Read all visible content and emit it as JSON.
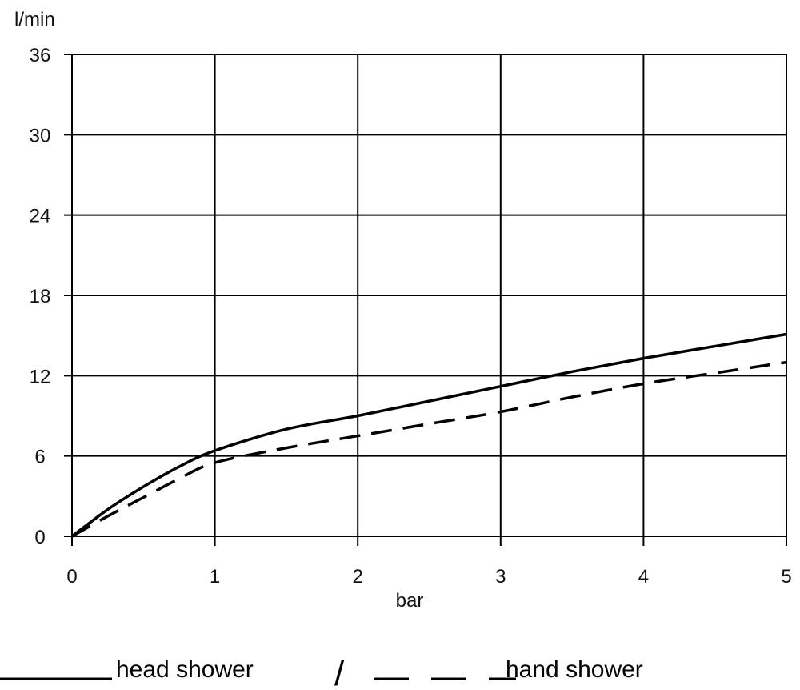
{
  "chart_data": {
    "type": "line",
    "title": "",
    "xlabel": "bar",
    "ylabel": "l/min",
    "xlim": [
      0,
      5
    ],
    "ylim": [
      0,
      36
    ],
    "xticks": [
      0,
      1,
      2,
      3,
      4,
      5
    ],
    "yticks": [
      0,
      6,
      12,
      18,
      24,
      30,
      36
    ],
    "grid": true,
    "legend_placement": "bottom",
    "legend_separator": "/",
    "series": [
      {
        "name": "head shower",
        "style": "solid",
        "color": "#000000",
        "x": [
          0,
          0.25,
          0.5,
          0.75,
          1,
          1.5,
          2,
          2.5,
          3,
          3.5,
          4,
          4.5,
          5
        ],
        "y": [
          0,
          2.0,
          3.7,
          5.2,
          6.4,
          8.0,
          9.0,
          10.1,
          11.2,
          12.3,
          13.3,
          14.2,
          15.1
        ]
      },
      {
        "name": "hand shower",
        "style": "dashed",
        "color": "#000000",
        "x": [
          0,
          0.25,
          0.5,
          0.75,
          1,
          1.5,
          2,
          2.5,
          3,
          3.5,
          4,
          4.5,
          5
        ],
        "y": [
          0,
          1.5,
          2.9,
          4.3,
          5.5,
          6.6,
          7.5,
          8.4,
          9.3,
          10.4,
          11.4,
          12.2,
          13.0
        ]
      }
    ]
  }
}
